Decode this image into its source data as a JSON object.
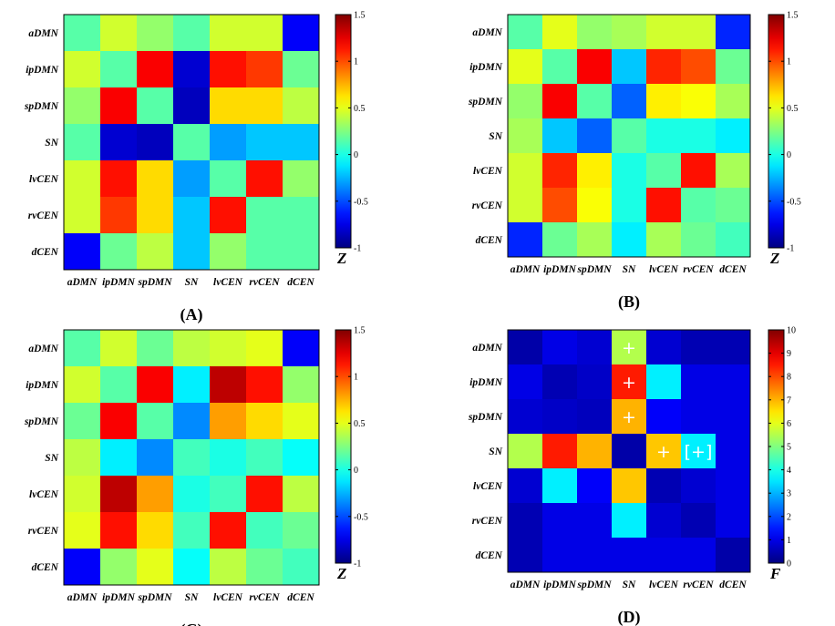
{
  "chart_data": [
    {
      "type": "heatmap",
      "panel_label": "(A)",
      "rows": [
        "aDMN",
        "ipDMN",
        "spDMN",
        "SN",
        "lvCEN",
        "rvCEN",
        "dCEN"
      ],
      "columns": [
        "aDMN",
        "ipDMN",
        "spDMN",
        "SN",
        "lvCEN",
        "rvCEN",
        "dCEN"
      ],
      "values": [
        [
          0.15,
          0.45,
          0.3,
          0.15,
          0.45,
          0.45,
          -0.7
        ],
        [
          0.45,
          0.15,
          1.2,
          -0.8,
          1.15,
          1.05,
          0.2
        ],
        [
          0.3,
          1.2,
          0.15,
          -0.85,
          0.65,
          0.65,
          0.4
        ],
        [
          0.15,
          -0.8,
          -0.85,
          0.15,
          -0.3,
          -0.2,
          -0.2
        ],
        [
          0.45,
          1.15,
          0.65,
          -0.3,
          0.15,
          1.15,
          0.3
        ],
        [
          0.45,
          1.05,
          0.65,
          -0.2,
          1.15,
          0.15,
          0.15
        ],
        [
          -0.7,
          0.2,
          0.4,
          -0.2,
          0.3,
          0.15,
          0.15
        ]
      ],
      "colorbar": {
        "unit": "Z",
        "range": [
          -1,
          1.5
        ],
        "ticks": [
          "1.5",
          "1",
          "0.5",
          "0",
          "-0.5",
          "-1"
        ]
      }
    },
    {
      "type": "heatmap",
      "panel_label": "(B)",
      "rows": [
        "aDMN",
        "ipDMN",
        "spDMN",
        "SN",
        "lvCEN",
        "rvCEN",
        "dCEN"
      ],
      "columns": [
        "aDMN",
        "ipDMN",
        "spDMN",
        "SN",
        "lvCEN",
        "rvCEN",
        "dCEN"
      ],
      "values": [
        [
          0.15,
          0.5,
          0.3,
          0.35,
          0.45,
          0.45,
          -0.6
        ],
        [
          0.5,
          0.15,
          1.2,
          -0.2,
          1.1,
          1.0,
          0.2
        ],
        [
          0.3,
          1.2,
          0.15,
          -0.45,
          0.6,
          0.55,
          0.35
        ],
        [
          0.35,
          -0.2,
          -0.45,
          0.15,
          0.0,
          0.0,
          -0.1
        ],
        [
          0.45,
          1.1,
          0.6,
          0.0,
          0.15,
          1.15,
          0.35
        ],
        [
          0.45,
          1.0,
          0.55,
          0.0,
          1.15,
          0.15,
          0.2
        ],
        [
          -0.6,
          0.2,
          0.35,
          -0.1,
          0.35,
          0.2,
          0.1
        ]
      ],
      "colorbar": {
        "unit": "Z",
        "range": [
          -1,
          1.5
        ],
        "ticks": [
          "1.5",
          "1",
          "0.5",
          "0",
          "-0.5",
          "-1"
        ]
      }
    },
    {
      "type": "heatmap",
      "panel_label": "(C)",
      "rows": [
        "aDMN",
        "ipDMN",
        "spDMN",
        "SN",
        "lvCEN",
        "rvCEN",
        "dCEN"
      ],
      "columns": [
        "aDMN",
        "ipDMN",
        "spDMN",
        "SN",
        "lvCEN",
        "rvCEN",
        "dCEN"
      ],
      "values": [
        [
          0.15,
          0.45,
          0.2,
          0.4,
          0.45,
          0.5,
          -0.7
        ],
        [
          0.45,
          0.15,
          1.2,
          -0.1,
          1.35,
          1.15,
          0.3
        ],
        [
          0.2,
          1.2,
          0.15,
          -0.35,
          0.8,
          0.65,
          0.5
        ],
        [
          0.4,
          -0.1,
          -0.35,
          0.1,
          0.0,
          0.1,
          -0.05
        ],
        [
          0.45,
          1.35,
          0.8,
          0.0,
          0.1,
          1.15,
          0.4
        ],
        [
          0.5,
          1.15,
          0.65,
          0.1,
          1.15,
          0.1,
          0.2
        ],
        [
          -0.7,
          0.3,
          0.5,
          -0.05,
          0.4,
          0.2,
          0.1
        ]
      ],
      "colorbar": {
        "unit": "Z",
        "range": [
          -1,
          1.5
        ],
        "ticks": [
          "1.5",
          "1",
          "0.5",
          "0",
          "-0.5",
          "-1"
        ]
      }
    },
    {
      "type": "heatmap",
      "panel_label": "(D)",
      "rows": [
        "aDMN",
        "ipDMN",
        "spDMN",
        "SN",
        "lvCEN",
        "rvCEN",
        "dCEN"
      ],
      "columns": [
        "aDMN",
        "ipDMN",
        "spDMN",
        "SN",
        "lvCEN",
        "rvCEN",
        "dCEN"
      ],
      "values": [
        [
          0.4,
          1.0,
          0.8,
          5.5,
          0.8,
          0.5,
          0.5
        ],
        [
          1.0,
          0.5,
          0.7,
          8.5,
          3.6,
          1.0,
          1.0
        ],
        [
          0.8,
          0.7,
          0.6,
          7.0,
          1.2,
          1.0,
          1.0
        ],
        [
          5.5,
          8.5,
          7.0,
          0.4,
          6.8,
          3.6,
          1.0
        ],
        [
          0.8,
          3.6,
          1.2,
          6.8,
          0.5,
          0.8,
          1.0
        ],
        [
          0.5,
          1.0,
          1.0,
          3.6,
          0.8,
          0.5,
          1.0
        ],
        [
          0.5,
          1.0,
          1.0,
          1.0,
          1.0,
          1.0,
          0.4
        ]
      ],
      "markers": [
        {
          "row": 0,
          "col": 3,
          "text": "+"
        },
        {
          "row": 1,
          "col": 3,
          "text": "+"
        },
        {
          "row": 2,
          "col": 3,
          "text": "+"
        },
        {
          "row": 3,
          "col": 4,
          "text": "+"
        },
        {
          "row": 3,
          "col": 5,
          "text": "[+]"
        }
      ],
      "colorbar": {
        "unit": "F",
        "range": [
          0,
          10
        ],
        "ticks": [
          "10",
          "9",
          "8",
          "7",
          "6",
          "5",
          "4",
          "3",
          "2",
          "1",
          "0"
        ]
      }
    }
  ]
}
